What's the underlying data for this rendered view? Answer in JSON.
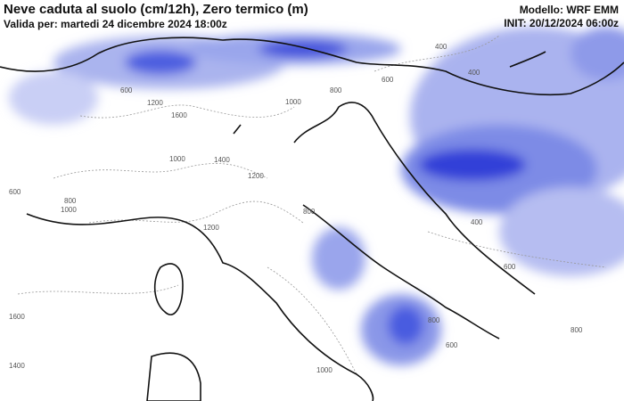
{
  "header": {
    "title": "Neve caduta al suolo (cm/12h), Zero termico (m)",
    "valid": "Valida per: martedi 24 dicembre 2024 18:00z",
    "model": "Modello: WRF EMM",
    "init": "INIT: 20/12/2024 06:00z"
  },
  "map": {
    "contour_labels": [
      "600",
      "1200",
      "1600",
      "800",
      "1000",
      "1400",
      "1200",
      "400",
      "600",
      "800",
      "1000",
      "800",
      "1200",
      "600",
      "400",
      "800",
      "600",
      "800",
      "1600",
      "1400",
      "1000",
      "400",
      "600",
      "1000"
    ]
  }
}
